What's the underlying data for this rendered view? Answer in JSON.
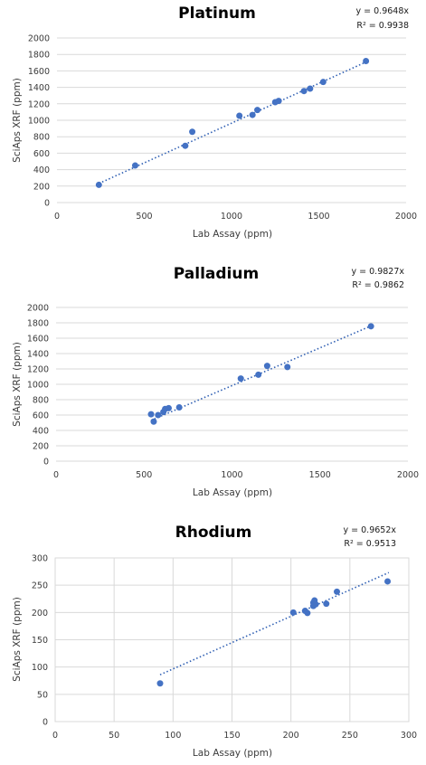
{
  "chart_data": [
    {
      "type": "scatter",
      "title": "Platinum",
      "xlabel": "Lab Assay (ppm)",
      "ylabel": "SciAps XRF (ppm)",
      "equation": "y = 0.9648x",
      "r2": "R² = 0.9938",
      "xlim": [
        0,
        2000
      ],
      "ylim": [
        0,
        2000
      ],
      "xticks": [
        0,
        500,
        1000,
        1500,
        2000
      ],
      "yticks": [
        0,
        200,
        400,
        600,
        800,
        1000,
        1200,
        1400,
        1600,
        1800,
        2000
      ],
      "grid": "horizontal",
      "trendline": {
        "slope": 0.9648,
        "x_range": [
          240,
          1775
        ]
      },
      "points": [
        {
          "x": 240,
          "y": 215
        },
        {
          "x": 448,
          "y": 450
        },
        {
          "x": 735,
          "y": 690
        },
        {
          "x": 775,
          "y": 860
        },
        {
          "x": 1045,
          "y": 1055
        },
        {
          "x": 1120,
          "y": 1065
        },
        {
          "x": 1148,
          "y": 1125
        },
        {
          "x": 1250,
          "y": 1220
        },
        {
          "x": 1270,
          "y": 1235
        },
        {
          "x": 1415,
          "y": 1355
        },
        {
          "x": 1450,
          "y": 1385
        },
        {
          "x": 1525,
          "y": 1465
        },
        {
          "x": 1770,
          "y": 1720
        }
      ]
    },
    {
      "type": "scatter",
      "title": "Palladium",
      "xlabel": "Lab Assay (ppm)",
      "ylabel": "SciAps XRF (ppm)",
      "equation": "y = 0.9827x",
      "r2": "R² = 0.9862",
      "xlim": [
        0,
        2000
      ],
      "ylim": [
        0,
        2000
      ],
      "xticks": [
        0,
        500,
        1000,
        1500,
        2000
      ],
      "yticks": [
        0,
        200,
        400,
        600,
        800,
        1000,
        1200,
        1400,
        1600,
        1800,
        2000
      ],
      "grid": "horizontal",
      "trendline": {
        "slope": 0.9827,
        "x_range": [
          540,
          1790
        ]
      },
      "points": [
        {
          "x": 540,
          "y": 610
        },
        {
          "x": 555,
          "y": 515
        },
        {
          "x": 580,
          "y": 600
        },
        {
          "x": 610,
          "y": 640
        },
        {
          "x": 620,
          "y": 680
        },
        {
          "x": 640,
          "y": 690
        },
        {
          "x": 700,
          "y": 700
        },
        {
          "x": 1050,
          "y": 1075
        },
        {
          "x": 1150,
          "y": 1125
        },
        {
          "x": 1200,
          "y": 1240
        },
        {
          "x": 1315,
          "y": 1225
        },
        {
          "x": 1790,
          "y": 1755
        }
      ]
    },
    {
      "type": "scatter",
      "title": "Rhodium",
      "xlabel": "Lab Assay (ppm)",
      "ylabel": "SciAps XRF (ppm)",
      "equation": "y = 0.9652x",
      "r2": "R² = 0.9513",
      "xlim": [
        0,
        300
      ],
      "ylim": [
        0,
        300
      ],
      "xticks": [
        0,
        50,
        100,
        150,
        200,
        250,
        300
      ],
      "yticks": [
        0,
        50,
        100,
        150,
        200,
        250,
        300
      ],
      "grid": "both",
      "trendline": {
        "slope": 0.9652,
        "x_range": [
          89,
          283
        ]
      },
      "points": [
        {
          "x": 89,
          "y": 70
        },
        {
          "x": 202,
          "y": 200
        },
        {
          "x": 212,
          "y": 203
        },
        {
          "x": 214,
          "y": 199
        },
        {
          "x": 219,
          "y": 212
        },
        {
          "x": 219,
          "y": 218
        },
        {
          "x": 220,
          "y": 222
        },
        {
          "x": 221,
          "y": 215
        },
        {
          "x": 230,
          "y": 216
        },
        {
          "x": 239,
          "y": 238
        },
        {
          "x": 282,
          "y": 257
        }
      ]
    }
  ]
}
